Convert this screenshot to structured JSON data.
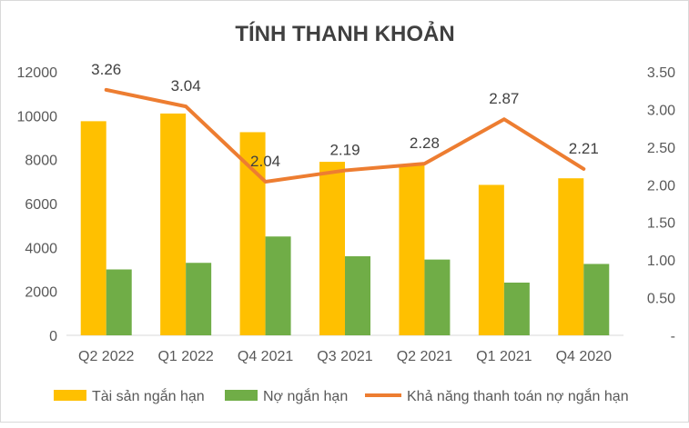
{
  "chart_data": {
    "type": "bar",
    "title": "TÍNH THANH KHOẢN",
    "categories": [
      "Q2 2022",
      "Q1 2022",
      "Q4 2021",
      "Q3 2021",
      "Q2 2021",
      "Q1 2021",
      "Q4 2020"
    ],
    "series": [
      {
        "name": "Tài sản ngắn hạn",
        "type": "bar",
        "axis": "left",
        "color": "#FFC000",
        "values": [
          9750,
          10100,
          9250,
          7900,
          7800,
          6850,
          7150
        ]
      },
      {
        "name": "Nợ ngắn hạn",
        "type": "bar",
        "axis": "left",
        "color": "#70AD47",
        "values": [
          3000,
          3300,
          4500,
          3600,
          3450,
          2400,
          3250
        ]
      },
      {
        "name": "Khả năng thanh toán nợ ngắn hạn",
        "type": "line",
        "axis": "right",
        "color": "#ED7D31",
        "values": [
          3.26,
          3.04,
          2.04,
          2.19,
          2.28,
          2.87,
          2.21
        ],
        "labels": [
          "3.26",
          "3.04",
          "2.04",
          "2.19",
          "2.28",
          "2.87",
          "2.21"
        ]
      }
    ],
    "y_left": {
      "min": 0,
      "max": 12000,
      "ticks": [
        "0",
        "2000",
        "4000",
        "6000",
        "8000",
        "10000",
        "12000"
      ]
    },
    "y_right": {
      "min": 0,
      "max": 3.5,
      "ticks": [
        "-",
        "0.50",
        "1.00",
        "1.50",
        "2.00",
        "2.50",
        "3.00",
        "3.50"
      ]
    },
    "grid": false,
    "legend_position": "bottom"
  }
}
